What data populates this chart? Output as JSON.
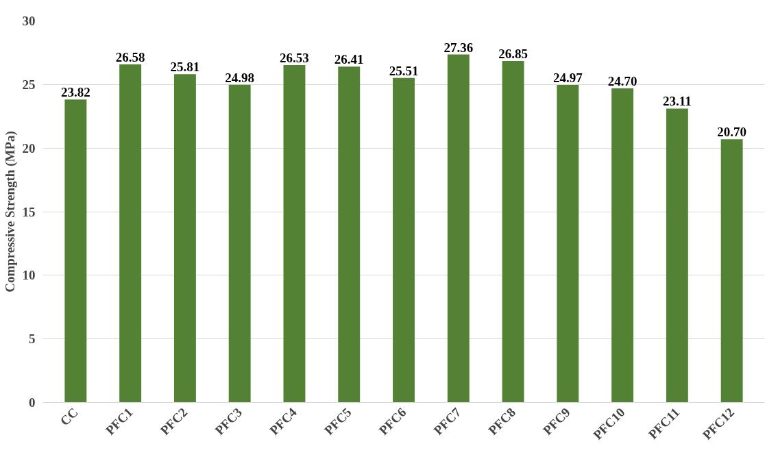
{
  "chart_data": {
    "type": "bar",
    "ylabel": "Compressive Strength (MPa)",
    "categories": [
      "CC",
      "PFC1",
      "PFC2",
      "PFC3",
      "PFC4",
      "PFC5",
      "PFC6",
      "PFC7",
      "PFC8",
      "PFC9",
      "PFC10",
      "PFC11",
      "PFC12"
    ],
    "values": [
      23.82,
      26.58,
      25.81,
      24.98,
      26.53,
      26.41,
      25.51,
      27.36,
      26.85,
      24.97,
      24.7,
      23.11,
      20.7
    ],
    "value_labels": [
      "23.82",
      "26.58",
      "25.81",
      "24.98",
      "26.53",
      "26.41",
      "25.51",
      "27.36",
      "26.85",
      "24.97",
      "24.70",
      "23.11",
      "20.70"
    ],
    "color": "#548235",
    "ylim": [
      0,
      30
    ],
    "yticks": [
      0,
      5,
      10,
      15,
      20,
      25,
      30
    ],
    "grid": "y"
  }
}
